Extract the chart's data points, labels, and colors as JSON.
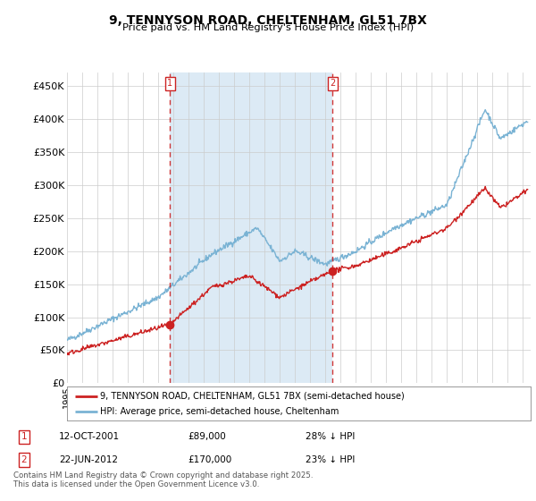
{
  "title": "9, TENNYSON ROAD, CHELTENHAM, GL51 7BX",
  "subtitle": "Price paid vs. HM Land Registry's House Price Index (HPI)",
  "ylabel_ticks": [
    "£0",
    "£50K",
    "£100K",
    "£150K",
    "£200K",
    "£250K",
    "£300K",
    "£350K",
    "£400K",
    "£450K"
  ],
  "ytick_values": [
    0,
    50000,
    100000,
    150000,
    200000,
    250000,
    300000,
    350000,
    400000,
    450000
  ],
  "ylim": [
    0,
    470000
  ],
  "xlim_start": 1995.0,
  "xlim_end": 2025.5,
  "hpi_color": "#7ab3d4",
  "price_color": "#cc2222",
  "vline_color": "#cc2222",
  "fill_color": "#dceaf5",
  "marker1_date": 2001.78,
  "marker1_price": 89000,
  "marker2_date": 2012.47,
  "marker2_price": 170000,
  "sale1_label": "12-OCT-2001",
  "sale1_price": "£89,000",
  "sale1_note": "28% ↓ HPI",
  "sale2_label": "22-JUN-2012",
  "sale2_price": "£170,000",
  "sale2_note": "23% ↓ HPI",
  "legend_property": "9, TENNYSON ROAD, CHELTENHAM, GL51 7BX (semi-detached house)",
  "legend_hpi": "HPI: Average price, semi-detached house, Cheltenham",
  "footer": "Contains HM Land Registry data © Crown copyright and database right 2025.\nThis data is licensed under the Open Government Licence v3.0.",
  "background_color": "#ffffff",
  "grid_color": "#cccccc"
}
